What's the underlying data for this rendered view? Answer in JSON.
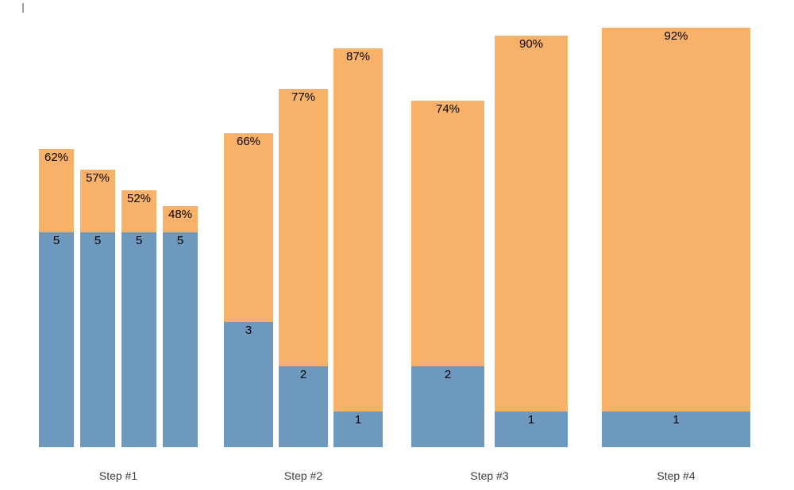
{
  "chart_data": {
    "type": "bar",
    "variant": "grouped-stacked-columns",
    "title": "",
    "xlabel": "",
    "ylabel": "",
    "grid": false,
    "legend_position": "none",
    "background": "#ffffff",
    "colors": {
      "top_segment_orange": "#f8b169",
      "bottom_segment_blue": "#6e99be",
      "group_label_text": "#3d3d3d",
      "value_label_text": "#000000"
    },
    "groups": [
      {
        "label": "Step #1",
        "bars": [
          {
            "top_pct": 62,
            "top_label": "62%",
            "bottom_count": 5,
            "bottom_label": "5"
          },
          {
            "top_pct": 57,
            "top_label": "57%",
            "bottom_count": 5,
            "bottom_label": "5"
          },
          {
            "top_pct": 52,
            "top_label": "52%",
            "bottom_count": 5,
            "bottom_label": "5"
          },
          {
            "top_pct": 48,
            "top_label": "48%",
            "bottom_count": 5,
            "bottom_label": "5"
          }
        ]
      },
      {
        "label": "Step #2",
        "bars": [
          {
            "top_pct": 66,
            "top_label": "66%",
            "bottom_count": 3,
            "bottom_label": "3"
          },
          {
            "top_pct": 77,
            "top_label": "77%",
            "bottom_count": 2,
            "bottom_label": "2"
          },
          {
            "top_pct": 87,
            "top_label": "87%",
            "bottom_count": 1,
            "bottom_label": "1"
          }
        ]
      },
      {
        "label": "Step #3",
        "bars": [
          {
            "top_pct": 74,
            "top_label": "74%",
            "bottom_count": 2,
            "bottom_label": "2"
          },
          {
            "top_pct": 90,
            "top_label": "90%",
            "bottom_count": 1,
            "bottom_label": "1"
          }
        ]
      },
      {
        "label": "Step #4",
        "bars": [
          {
            "top_pct": 92,
            "top_label": "92%",
            "bottom_count": 1,
            "bottom_label": "1"
          }
        ]
      }
    ]
  }
}
